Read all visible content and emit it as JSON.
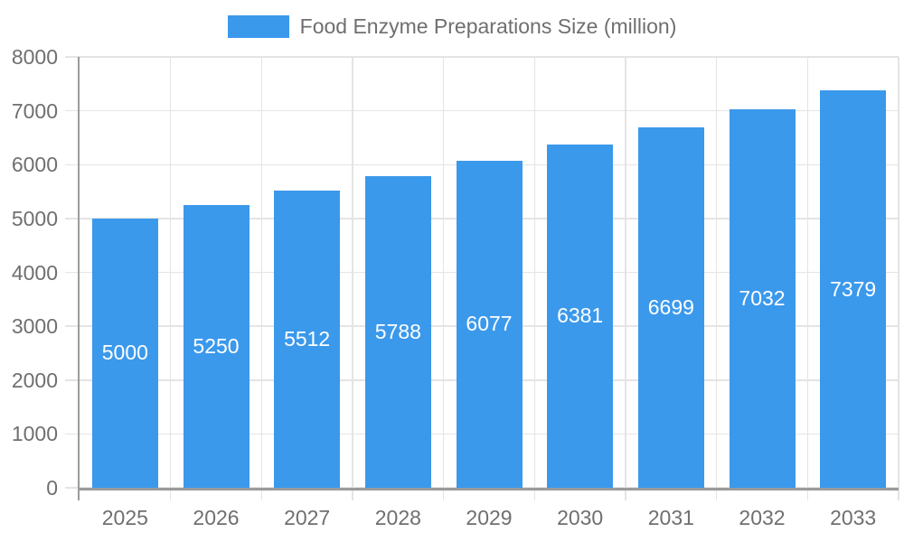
{
  "legend": {
    "label": "Food Enzyme Preparations Size (million)"
  },
  "chart_data": {
    "type": "bar",
    "title": "Food Enzyme Preparations Size (million)",
    "categories": [
      "2025",
      "2026",
      "2027",
      "2028",
      "2029",
      "2030",
      "2031",
      "2032",
      "2033"
    ],
    "values": [
      5000,
      5250,
      5512,
      5788,
      6077,
      6381,
      6699,
      7032,
      7379
    ],
    "xlabel": "",
    "ylabel": "",
    "ylim": [
      0,
      8000
    ],
    "ytick_step": 1000,
    "yticks": [
      0,
      1000,
      2000,
      3000,
      4000,
      5000,
      6000,
      7000,
      8000
    ],
    "grid": true,
    "legend_position": "top-center",
    "value_labels": "inside-center-white",
    "colors": {
      "bar": "#3b99ec",
      "gridline": "#e4e4e4",
      "axis": "#9b9b9b",
      "text": "#6f6f6f",
      "value_label": "#ffffff",
      "background": "#ffffff"
    }
  }
}
